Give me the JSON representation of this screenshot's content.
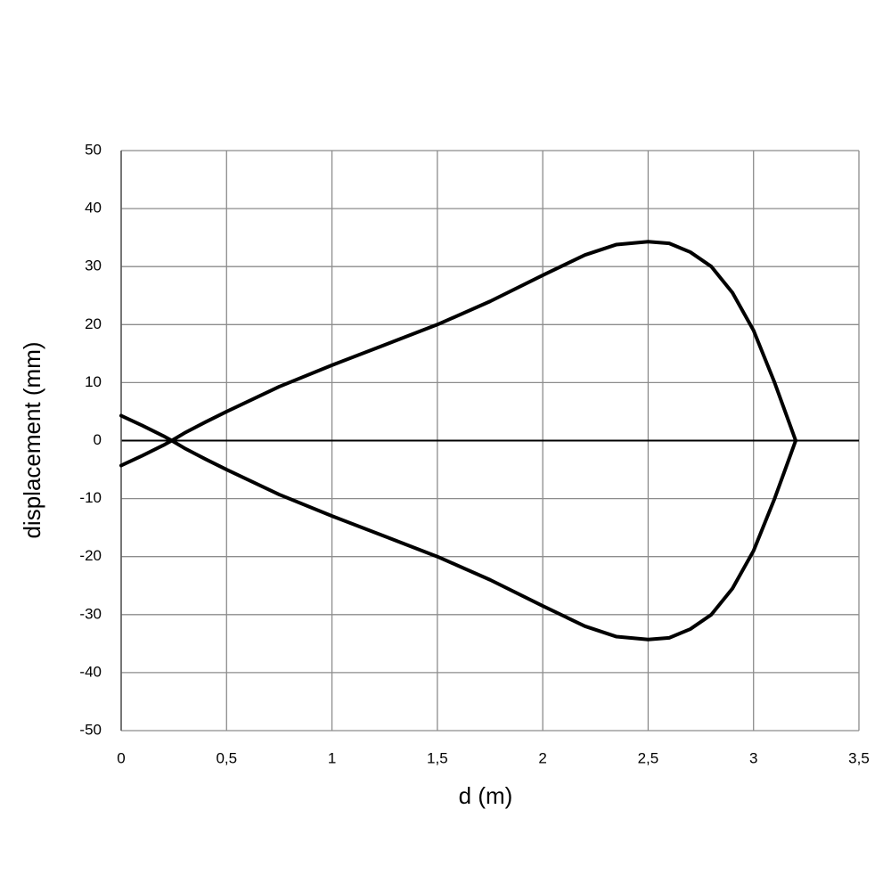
{
  "chart_data": {
    "type": "line",
    "xlabel": "d (m)",
    "ylabel": "displacement (mm)",
    "x": [
      0,
      0.1,
      0.2,
      0.24,
      0.3,
      0.4,
      0.5,
      0.75,
      1,
      1.25,
      1.5,
      1.75,
      2,
      2.2,
      2.35,
      2.5,
      2.6,
      2.7,
      2.8,
      2.9,
      3,
      3.1,
      3.15,
      3.2
    ],
    "series": [
      {
        "color": "#000000",
        "values": [
          -4.3,
          -2.6,
          -0.8,
          0,
          1.3,
          3.2,
          5,
          9.3,
          13,
          16.5,
          20,
          24,
          28.5,
          32,
          33.8,
          34.3,
          34,
          32.5,
          30,
          25.5,
          19,
          10,
          5,
          0
        ]
      },
      {
        "color": "#000000",
        "values": [
          4.3,
          2.6,
          0.8,
          0,
          -1.3,
          -3.2,
          -5,
          -9.3,
          -13,
          -16.5,
          -20,
          -24,
          -28.5,
          -32,
          -33.8,
          -34.3,
          -34,
          -32.5,
          -30,
          -25.5,
          -19,
          -10,
          -5,
          0
        ]
      }
    ],
    "xlim": [
      0,
      3.5
    ],
    "xticks": [
      0,
      {
        "value": 0.5,
        "label": "0,5"
      },
      1,
      {
        "value": 1.5,
        "label": "1,5"
      },
      2,
      {
        "value": 2.5,
        "label": "2,5"
      },
      3,
      {
        "value": 3.5,
        "label": "3,5"
      }
    ],
    "ylim": [
      -50,
      50
    ],
    "yticks": [
      -50,
      -40,
      -30,
      -20,
      -10,
      0,
      10,
      20,
      30,
      40,
      50
    ],
    "grid": true
  }
}
